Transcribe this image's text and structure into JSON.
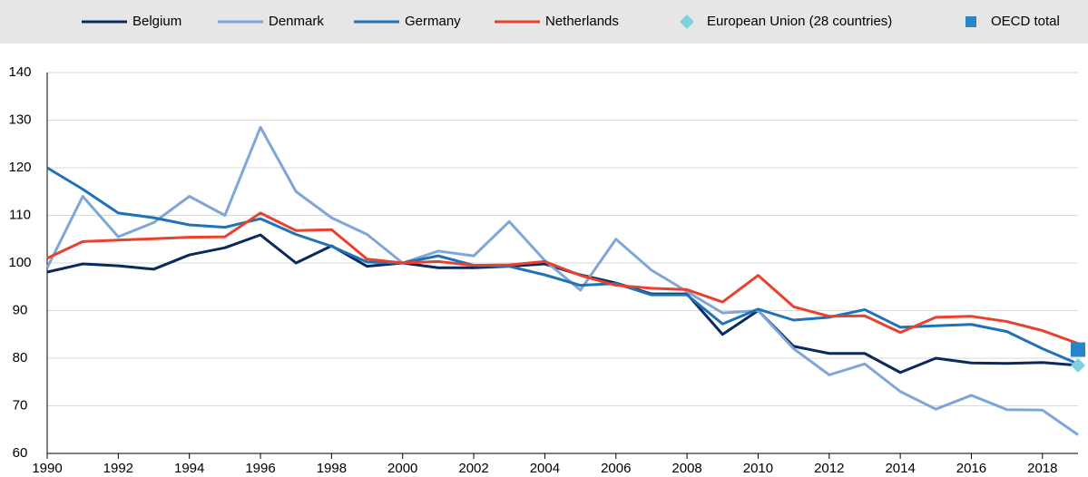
{
  "chart_data": {
    "type": "line",
    "x": [
      1990,
      1991,
      1992,
      1993,
      1994,
      1995,
      1996,
      1997,
      1998,
      1999,
      2000,
      2001,
      2002,
      2003,
      2004,
      2005,
      2006,
      2007,
      2008,
      2009,
      2010,
      2011,
      2012,
      2013,
      2014,
      2015,
      2016,
      2017,
      2018,
      2019
    ],
    "series": [
      {
        "name": "Belgium",
        "color": "#0b2a5c",
        "values": [
          98.1,
          99.8,
          99.4,
          98.7,
          101.7,
          103.2,
          105.9,
          100,
          103.6,
          99.3,
          100,
          99,
          99,
          99.3,
          99.8,
          97.5,
          95.8,
          93.5,
          93.5,
          85,
          90,
          82.5,
          81,
          81,
          77,
          80,
          79,
          78.9,
          79.1,
          78.5
        ]
      },
      {
        "name": "Denmark",
        "color": "#7ea6d9",
        "values": [
          99,
          114,
          105.5,
          108.5,
          114,
          110,
          128.5,
          115,
          109.5,
          106,
          100,
          102.5,
          101.5,
          108.7,
          100.5,
          94.3,
          105,
          98.5,
          94,
          89.5,
          90,
          82,
          76.5,
          78.8,
          73,
          69.3,
          72.2,
          69.2,
          69.1,
          63.9
        ]
      },
      {
        "name": "Germany",
        "color": "#1f72b8",
        "values": [
          120,
          115.5,
          110.5,
          109.5,
          108,
          107.5,
          109.3,
          106,
          103.5,
          100.2,
          100,
          101.5,
          99.5,
          99.3,
          97.5,
          95.3,
          95.7,
          93.3,
          93.3,
          87.2,
          90.3,
          88,
          88.6,
          90.2,
          86.5,
          86.8,
          87.1,
          85.6,
          82,
          78.8
        ]
      },
      {
        "name": "Netherlands",
        "color": "#e8412d",
        "values": [
          101,
          104.5,
          104.8,
          105.1,
          105.4,
          105.5,
          110.5,
          106.8,
          107,
          100.8,
          100,
          100.3,
          99.5,
          99.6,
          100.3,
          97.4,
          95.3,
          94.7,
          94.4,
          91.8,
          97.4,
          90.8,
          88.8,
          88.9,
          85.4,
          88.6,
          88.8,
          87.7,
          85.8,
          83.1
        ]
      }
    ],
    "markers": [
      {
        "name": "European Union (28 countries)",
        "color": "#7fd1e0",
        "shape": "diamond",
        "x": 2019,
        "value": 78.5
      },
      {
        "name": "OECD total",
        "color": "#2a84c9",
        "shape": "square",
        "x": 2019,
        "value": 81.8
      }
    ],
    "xlim": [
      1990,
      2019
    ],
    "xticks": [
      1990,
      1992,
      1994,
      1996,
      1998,
      2000,
      2002,
      2004,
      2006,
      2008,
      2010,
      2012,
      2014,
      2016,
      2018
    ],
    "ylim": [
      60,
      140
    ],
    "yticks": [
      60,
      70,
      80,
      90,
      100,
      110,
      120,
      130,
      140
    ],
    "grid": true
  }
}
